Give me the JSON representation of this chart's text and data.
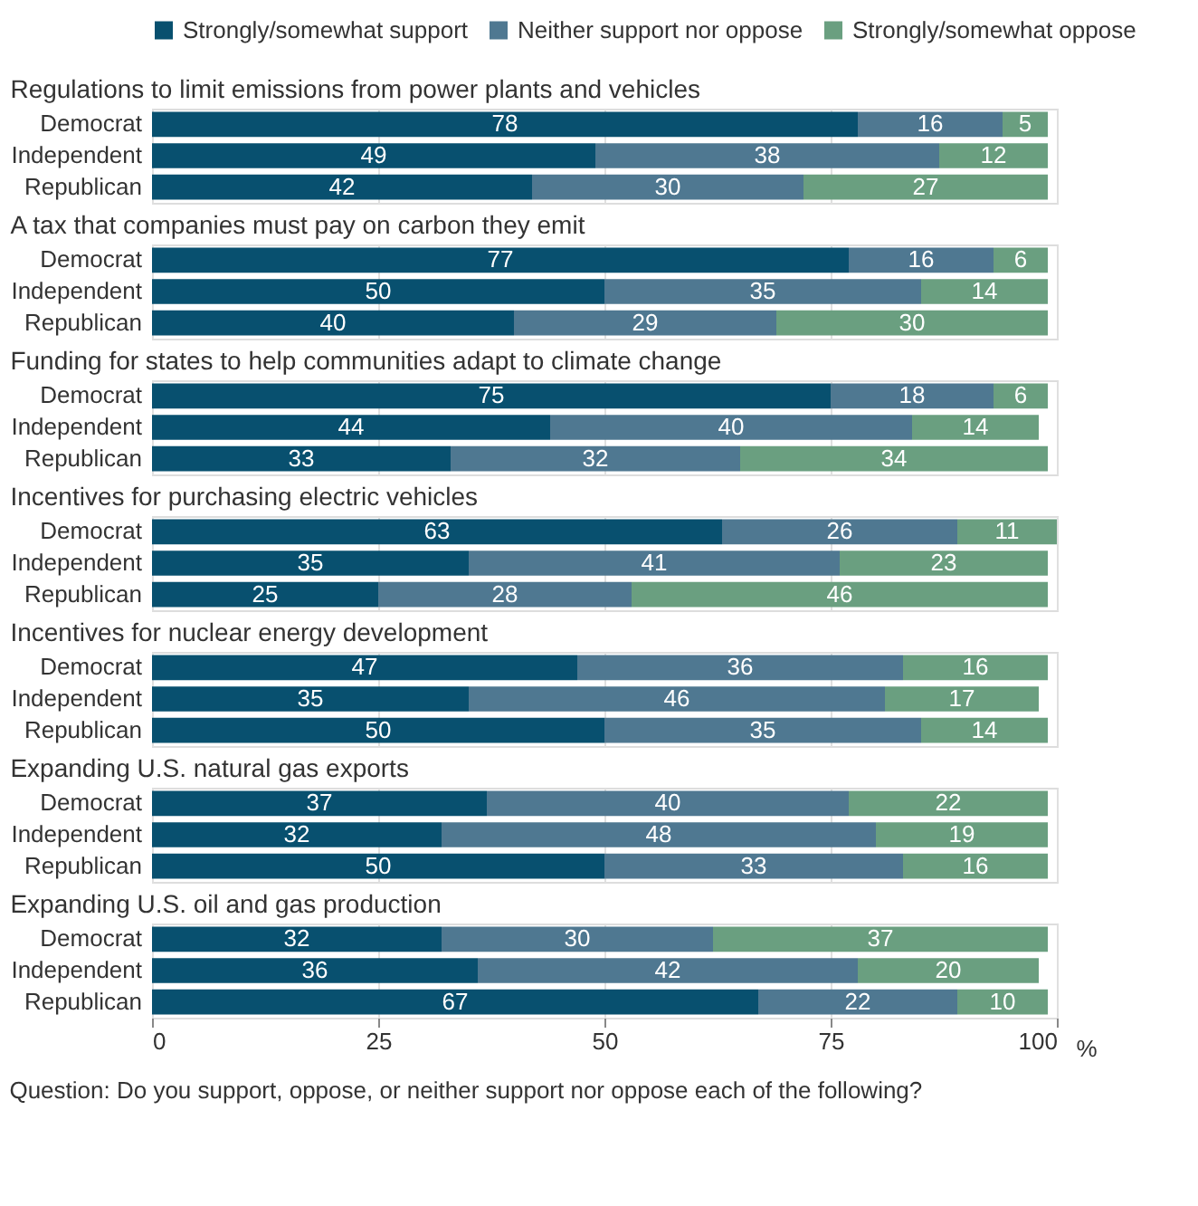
{
  "chart_data": [
    {
      "type": "bar",
      "title": "Regulations to limit emissions from power plants and vehicles",
      "orientation": "horizontal",
      "stacked": true,
      "data_labels": true,
      "legend": "top",
      "grid": "x",
      "tick_labels": "y",
      "xlim": [
        0,
        100
      ],
      "xticks": [
        0,
        25,
        50,
        75,
        100
      ],
      "categories": [
        "Democrat",
        "Independent",
        "Republican"
      ],
      "series": [
        {
          "name": "Strongly/somewhat support",
          "color": "#08506f",
          "values": [
            78,
            49,
            42
          ]
        },
        {
          "name": "Neither support nor oppose",
          "color": "#4f7891",
          "values": [
            16,
            38,
            30
          ]
        },
        {
          "name": "Strongly/somewhat oppose",
          "color": "#6a9f80",
          "values": [
            5,
            12,
            27
          ]
        }
      ]
    },
    {
      "type": "bar",
      "title": "A tax that companies must pay on carbon they emit",
      "orientation": "horizontal",
      "stacked": true,
      "data_labels": true,
      "grid": "x",
      "tick_labels": "y",
      "xlim": [
        0,
        100
      ],
      "xticks": [
        0,
        25,
        50,
        75,
        100
      ],
      "categories": [
        "Democrat",
        "Independent",
        "Republican"
      ],
      "series": [
        {
          "name": "Strongly/somewhat support",
          "color": "#08506f",
          "values": [
            77,
            50,
            40
          ]
        },
        {
          "name": "Neither support nor oppose",
          "color": "#4f7891",
          "values": [
            16,
            35,
            29
          ]
        },
        {
          "name": "Strongly/somewhat oppose",
          "color": "#6a9f80",
          "values": [
            6,
            14,
            30
          ]
        }
      ]
    },
    {
      "type": "bar",
      "title": "Funding for states to help communities adapt to climate change",
      "orientation": "horizontal",
      "stacked": true,
      "data_labels": true,
      "grid": "x",
      "tick_labels": "y",
      "xlim": [
        0,
        100
      ],
      "xticks": [
        0,
        25,
        50,
        75,
        100
      ],
      "categories": [
        "Democrat",
        "Independent",
        "Republican"
      ],
      "series": [
        {
          "name": "Strongly/somewhat support",
          "color": "#08506f",
          "values": [
            75,
            44,
            33
          ]
        },
        {
          "name": "Neither support nor oppose",
          "color": "#4f7891",
          "values": [
            18,
            40,
            32
          ]
        },
        {
          "name": "Strongly/somewhat oppose",
          "color": "#6a9f80",
          "values": [
            6,
            14,
            34
          ]
        }
      ]
    },
    {
      "type": "bar",
      "title": "Incentives for purchasing electric vehicles",
      "orientation": "horizontal",
      "stacked": true,
      "data_labels": true,
      "grid": "x",
      "tick_labels": "y",
      "xlim": [
        0,
        100
      ],
      "xticks": [
        0,
        25,
        50,
        75,
        100
      ],
      "categories": [
        "Democrat",
        "Independent",
        "Republican"
      ],
      "series": [
        {
          "name": "Strongly/somewhat support",
          "color": "#08506f",
          "values": [
            63,
            35,
            25
          ]
        },
        {
          "name": "Neither support nor oppose",
          "color": "#4f7891",
          "values": [
            26,
            41,
            28
          ]
        },
        {
          "name": "Strongly/somewhat oppose",
          "color": "#6a9f80",
          "values": [
            11,
            23,
            46
          ]
        }
      ]
    },
    {
      "type": "bar",
      "title": "Incentives for nuclear energy development",
      "orientation": "horizontal",
      "stacked": true,
      "data_labels": true,
      "grid": "x",
      "tick_labels": "y",
      "xlim": [
        0,
        100
      ],
      "xticks": [
        0,
        25,
        50,
        75,
        100
      ],
      "categories": [
        "Democrat",
        "Independent",
        "Republican"
      ],
      "series": [
        {
          "name": "Strongly/somewhat support",
          "color": "#08506f",
          "values": [
            47,
            35,
            50
          ]
        },
        {
          "name": "Neither support nor oppose",
          "color": "#4f7891",
          "values": [
            36,
            46,
            35
          ]
        },
        {
          "name": "Strongly/somewhat oppose",
          "color": "#6a9f80",
          "values": [
            16,
            17,
            14
          ]
        }
      ]
    },
    {
      "type": "bar",
      "title": "Expanding U.S. natural gas exports",
      "orientation": "horizontal",
      "stacked": true,
      "data_labels": true,
      "grid": "x",
      "tick_labels": "y",
      "xlim": [
        0,
        100
      ],
      "xticks": [
        0,
        25,
        50,
        75,
        100
      ],
      "categories": [
        "Democrat",
        "Independent",
        "Republican"
      ],
      "series": [
        {
          "name": "Strongly/somewhat support",
          "color": "#08506f",
          "values": [
            37,
            32,
            50
          ]
        },
        {
          "name": "Neither support nor oppose",
          "color": "#4f7891",
          "values": [
            40,
            48,
            33
          ]
        },
        {
          "name": "Strongly/somewhat oppose",
          "color": "#6a9f80",
          "values": [
            22,
            19,
            16
          ]
        }
      ]
    },
    {
      "type": "bar",
      "title": "Expanding U.S. oil and gas production",
      "orientation": "horizontal",
      "stacked": true,
      "data_labels": true,
      "grid": "x",
      "xlim": [
        0,
        100
      ],
      "xticks": [
        0,
        25,
        50,
        75,
        100
      ],
      "xlabel": "%",
      "annotations": [
        "Question: Do you support, oppose, or neither support nor oppose each of the following?"
      ],
      "categories": [
        "Democrat",
        "Independent",
        "Republican"
      ],
      "series": [
        {
          "name": "Strongly/somewhat support",
          "color": "#08506f",
          "values": [
            32,
            36,
            67
          ]
        },
        {
          "name": "Neither support nor oppose",
          "color": "#4f7891",
          "values": [
            30,
            42,
            22
          ]
        },
        {
          "name": "Strongly/somewhat oppose",
          "color": "#6a9f80",
          "values": [
            37,
            20,
            10
          ]
        }
      ]
    }
  ]
}
